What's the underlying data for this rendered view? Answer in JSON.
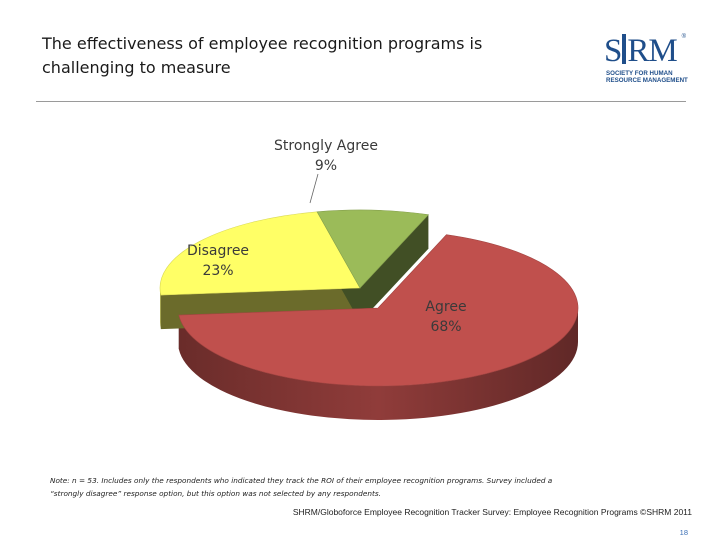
{
  "title": {
    "line1": "The effectiveness of employee recognition programs is",
    "line2": "challenging to measure"
  },
  "logo": {
    "name": "SHRM",
    "subtitle_line1": "SOCIETY FOR HUMAN",
    "subtitle_line2": "RESOURCE MANAGEMENT",
    "registered": "®"
  },
  "colors": {
    "agree": "#c0504d",
    "disagree": "#ffff66",
    "strongly_agree": "#9bbb59"
  },
  "chart_data": {
    "type": "pie",
    "title": "",
    "style": "3d",
    "slices": [
      {
        "label": "Agree",
        "value": 68,
        "display": "68%",
        "color": "#c0504d"
      },
      {
        "label": "Disagree",
        "value": 23,
        "display": "23%",
        "color": "#ffff66"
      },
      {
        "label": "Strongly Agree",
        "value": 9,
        "display": "9%",
        "color": "#9bbb59"
      }
    ]
  },
  "note": {
    "line1": "Note: n = 53. Includes only the respondents who indicated they track the ROI of their employee recognition programs. Survey included a",
    "line2": "“strongly disagree” response option, but this option was not selected by any respondents."
  },
  "source": "SHRM/Globoforce Employee Recognition Tracker Survey: Employee Recognition Programs ©SHRM 2011",
  "page_number": "18"
}
